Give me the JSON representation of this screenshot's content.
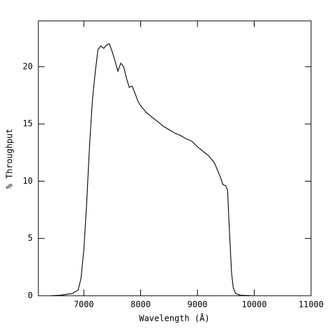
{
  "chart_data": {
    "type": "line",
    "xlabel": "Wavelength (Å)",
    "ylabel": "% Throughput",
    "x": [
      6200,
      6400,
      6600,
      6800,
      6900,
      6950,
      7000,
      7050,
      7100,
      7150,
      7200,
      7250,
      7300,
      7350,
      7400,
      7450,
      7500,
      7550,
      7600,
      7650,
      7700,
      7750,
      7800,
      7850,
      7900,
      7950,
      8000,
      8100,
      8200,
      8300,
      8400,
      8500,
      8600,
      8700,
      8800,
      8900,
      9000,
      9100,
      9200,
      9300,
      9350,
      9400,
      9450,
      9500,
      9530,
      9550,
      9580,
      9600,
      9630,
      9670,
      9750,
      10000,
      11000
    ],
    "series": [
      {
        "name": "Throughput",
        "color": "#000000",
        "values": [
          0,
          0,
          0.05,
          0.2,
          0.5,
          1.5,
          4,
          8,
          13,
          17,
          19.5,
          21.5,
          21.8,
          21.6,
          21.9,
          22.0,
          21.3,
          20.5,
          19.6,
          20.3,
          20.0,
          19.0,
          18.2,
          18.3,
          17.7,
          17.0,
          16.6,
          16.0,
          15.6,
          15.2,
          14.8,
          14.5,
          14.2,
          14.0,
          13.7,
          13.5,
          13.0,
          12.6,
          12.2,
          11.6,
          11.0,
          10.4,
          9.7,
          9.6,
          9.2,
          7,
          4,
          2,
          0.7,
          0.2,
          0.05,
          0,
          0
        ]
      }
    ],
    "xlim": [
      6200,
      11000
    ],
    "xticks": [
      7000,
      8000,
      9000,
      10000,
      11000
    ],
    "ylim": [
      0,
      24
    ],
    "yticks": [
      0,
      5,
      10,
      15,
      20
    ]
  }
}
